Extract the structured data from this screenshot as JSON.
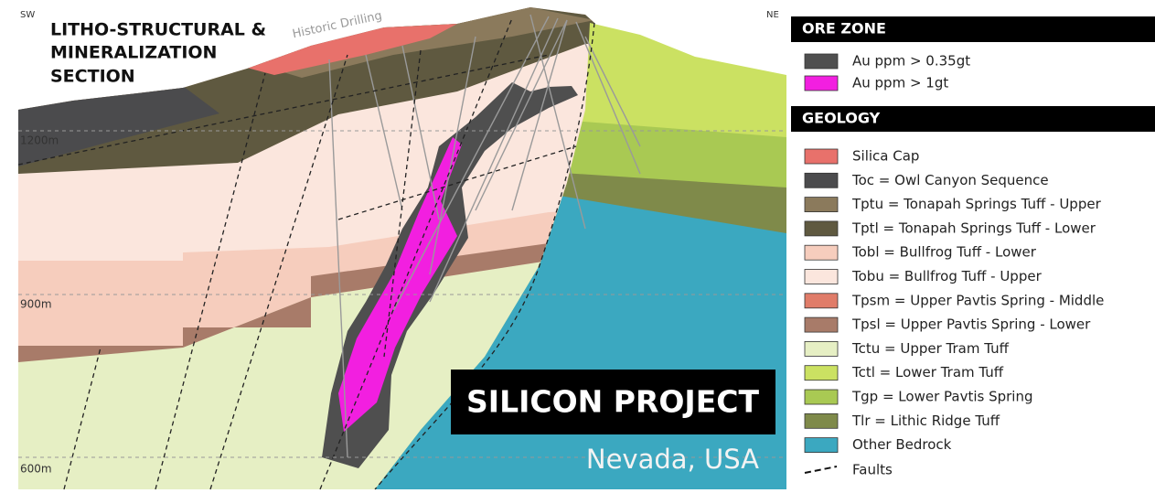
{
  "section": {
    "title_lines": [
      "LITHO-STRUCTURAL &",
      "MINERALIZATION",
      "SECTION"
    ],
    "direction_left": "SW",
    "direction_right": "NE",
    "annotation": "Historic Drilling",
    "elevations": [
      "1200m",
      "900m",
      "600m"
    ],
    "project_name": "SILICON PROJECT",
    "location": "Nevada, USA"
  },
  "ore_zone": {
    "heading": "ORE ZONE",
    "items": [
      {
        "label": "Au ppm > 0.35gt",
        "color": "#4f4f4f"
      },
      {
        "label": "Au ppm > 1gt",
        "color": "#f21fe0"
      }
    ]
  },
  "geology": {
    "heading": "GEOLOGY",
    "items": [
      {
        "label": "Silica Cap",
        "color": "#e8716b"
      },
      {
        "label": "Toc = Owl Canyon Sequence",
        "color": "#4b4b4d"
      },
      {
        "label": "Tptu = Tonapah Springs Tuff - Upper",
        "color": "#8b7a5c"
      },
      {
        "label": "Tptl = Tonapah Springs Tuff - Lower",
        "color": "#5f5940"
      },
      {
        "label": "Tobl = Bullfrog Tuff - Lower",
        "color": "#f6cdbd"
      },
      {
        "label": "Tobu = Bullfrog Tuff - Upper",
        "color": "#fbe6dd"
      },
      {
        "label": "Tpsm = Upper Pavtis Spring - Middle",
        "color": "#e07c69"
      },
      {
        "label": "Tpsl = Upper Pavtis Spring - Lower",
        "color": "#a87b69"
      },
      {
        "label": "Tctu = Upper Tram Tuff",
        "color": "#e6efc4"
      },
      {
        "label": "Tctl = Lower Tram Tuff",
        "color": "#cbe162"
      },
      {
        "label": "Tgp = Lower Pavtis Spring",
        "color": "#a9c953"
      },
      {
        "label": "Tlr = Lithic Ridge Tuff",
        "color": "#7f8a4a"
      },
      {
        "label": "Other Bedrock",
        "color": "#3ba8c0"
      }
    ],
    "faults_label": "Faults"
  }
}
